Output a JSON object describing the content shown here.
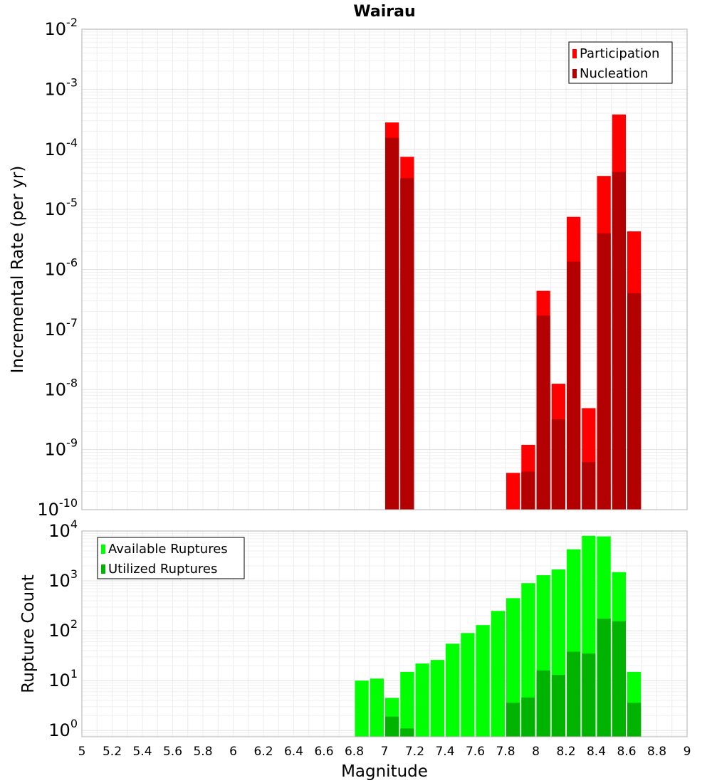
{
  "chart_data": [
    {
      "type": "bar",
      "title": "Wairau",
      "xlabel": "",
      "ylabel": "Incremental Rate (per yr)",
      "yscale": "log",
      "ylim": [
        1e-10,
        0.01
      ],
      "xlim": [
        5,
        9
      ],
      "bar_width": 0.1,
      "y_ticks": [
        {
          "base": "10",
          "exp": "-10"
        },
        {
          "base": "10",
          "exp": "-9"
        },
        {
          "base": "10",
          "exp": "-8"
        },
        {
          "base": "10",
          "exp": "-7"
        },
        {
          "base": "10",
          "exp": "-6"
        },
        {
          "base": "10",
          "exp": "-5"
        },
        {
          "base": "10",
          "exp": "-4"
        },
        {
          "base": "10",
          "exp": "-3"
        },
        {
          "base": "10",
          "exp": "-2"
        }
      ],
      "grid": true,
      "legend": "top-right",
      "series": [
        {
          "name": "Participation",
          "color": "#ff0000",
          "x": [
            7.05,
            7.15,
            7.85,
            7.95,
            8.05,
            8.15,
            8.25,
            8.35,
            8.45,
            8.55,
            8.65
          ],
          "values": [
            0.00028,
            7.5e-05,
            4.1e-10,
            1.2e-09,
            4.4e-07,
            1.25e-08,
            7.5e-06,
            4.9e-09,
            3.6e-05,
            0.00038,
            4.3e-06
          ]
        },
        {
          "name": "Nucleation",
          "color": "#b30000",
          "x": [
            7.05,
            7.15,
            7.95,
            8.05,
            8.15,
            8.25,
            8.35,
            8.45,
            8.55,
            8.65
          ],
          "values": [
            0.000155,
            3.3e-05,
            4.3e-10,
            1.7e-07,
            3.2e-09,
            1.35e-06,
            6.2e-10,
            4e-06,
            4.2e-05,
            4e-07
          ]
        }
      ]
    },
    {
      "type": "bar",
      "title": "",
      "xlabel": "Magnitude",
      "ylabel": "Rupture Count",
      "yscale": "log",
      "ylim": [
        0.75,
        10000
      ],
      "xlim": [
        5,
        9
      ],
      "bar_width": 0.1,
      "x_ticks": [
        "5",
        "5.2",
        "5.4",
        "5.6",
        "5.8",
        "6",
        "6.2",
        "6.4",
        "6.6",
        "6.8",
        "7",
        "7.2",
        "7.4",
        "7.6",
        "7.8",
        "8",
        "8.2",
        "8.4",
        "8.6",
        "8.8",
        "9"
      ],
      "y_ticks": [
        {
          "base": "10",
          "exp": "0"
        },
        {
          "base": "10",
          "exp": "1"
        },
        {
          "base": "10",
          "exp": "2"
        },
        {
          "base": "10",
          "exp": "3"
        },
        {
          "base": "10",
          "exp": "4"
        }
      ],
      "grid": true,
      "legend": "top-left",
      "series": [
        {
          "name": "Available Ruptures",
          "color": "#00ff00",
          "x": [
            6.85,
            6.95,
            7.05,
            7.15,
            7.25,
            7.35,
            7.45,
            7.55,
            7.65,
            7.75,
            7.85,
            7.95,
            8.05,
            8.15,
            8.25,
            8.35,
            8.45,
            8.55,
            8.65
          ],
          "values": [
            10,
            11,
            4.5,
            15,
            22,
            26,
            55,
            90,
            130,
            250,
            450,
            900,
            1300,
            1700,
            4300,
            8000,
            7800,
            1500,
            15
          ]
        },
        {
          "name": "Utilized Ruptures",
          "color": "#00b300",
          "x": [
            7.05,
            7.15,
            7.85,
            7.95,
            8.05,
            8.15,
            8.25,
            8.35,
            8.45,
            8.55,
            8.65
          ],
          "values": [
            1.9,
            1.1,
            3.6,
            4.6,
            16,
            13,
            38,
            35,
            175,
            155,
            3.6
          ]
        }
      ]
    }
  ]
}
